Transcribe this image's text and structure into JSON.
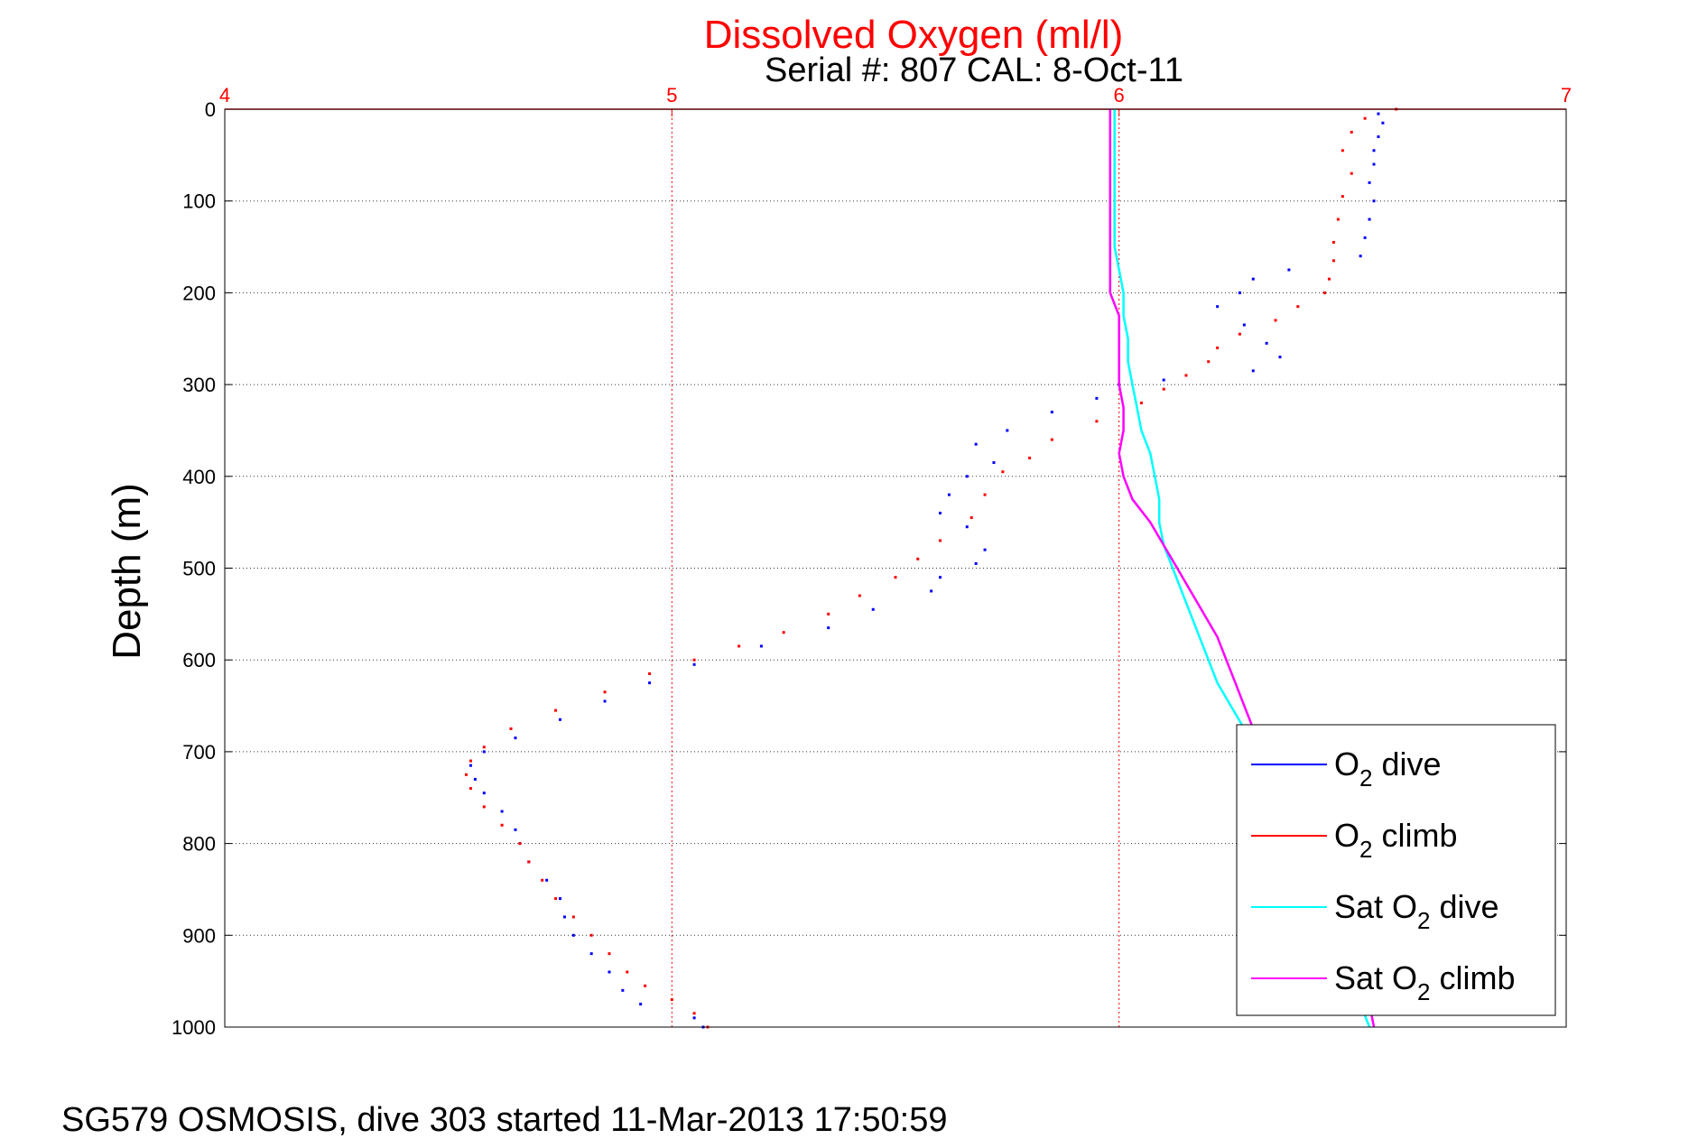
{
  "chart_data": {
    "type": "scatter",
    "title": "Dissolved Oxygen (ml/l)",
    "subtitle": "Serial #: 807  CAL: 8-Oct-11",
    "footer": "SG579 OSMOSIS, dive 303 started 11-Mar-2013 17:50:59",
    "xlabel": "",
    "ylabel": "Depth (m)",
    "xlim": [
      4,
      7
    ],
    "ylim": [
      0,
      1000
    ],
    "y_reversed": true,
    "x_axis_position": "top",
    "xticks": [
      "4",
      "5",
      "6",
      "7"
    ],
    "yticks": [
      "0",
      "100",
      "200",
      "300",
      "400",
      "500",
      "600",
      "700",
      "800",
      "900",
      "1000"
    ],
    "grid": true,
    "legend_position": "bottom-right",
    "colors": {
      "title": "#ff0000",
      "x_axis": "#ff0000",
      "o2_dive": "#0000ff",
      "o2_climb": "#ff0000",
      "sat_dive": "#00ffff",
      "sat_climb": "#ff00ff"
    },
    "legend": [
      {
        "sub_pre": "O",
        "sub": "2",
        "post": " dive"
      },
      {
        "sub_pre": "O",
        "sub": "2",
        "post": " climb"
      },
      {
        "sub_pre": "Sat O",
        "sub": "2",
        "post": " dive"
      },
      {
        "sub_pre": "Sat O",
        "sub": "2",
        "post": " climb"
      }
    ],
    "series": [
      {
        "name": "O2 dive",
        "style": "dots",
        "points": [
          [
            6.58,
            5
          ],
          [
            6.59,
            15
          ],
          [
            6.58,
            30
          ],
          [
            6.57,
            45
          ],
          [
            6.57,
            60
          ],
          [
            6.56,
            80
          ],
          [
            6.57,
            100
          ],
          [
            6.56,
            120
          ],
          [
            6.55,
            140
          ],
          [
            6.54,
            160
          ],
          [
            6.38,
            175
          ],
          [
            6.3,
            185
          ],
          [
            6.27,
            200
          ],
          [
            6.22,
            215
          ],
          [
            6.28,
            235
          ],
          [
            6.33,
            255
          ],
          [
            6.36,
            270
          ],
          [
            6.3,
            285
          ],
          [
            6.1,
            295
          ],
          [
            6.0,
            300
          ],
          [
            5.95,
            315
          ],
          [
            5.85,
            330
          ],
          [
            5.75,
            350
          ],
          [
            5.68,
            365
          ],
          [
            5.72,
            385
          ],
          [
            5.66,
            400
          ],
          [
            5.62,
            420
          ],
          [
            5.6,
            440
          ],
          [
            5.66,
            455
          ],
          [
            5.6,
            470
          ],
          [
            5.7,
            480
          ],
          [
            5.68,
            495
          ],
          [
            5.6,
            510
          ],
          [
            5.58,
            525
          ],
          [
            5.45,
            545
          ],
          [
            5.35,
            565
          ],
          [
            5.2,
            585
          ],
          [
            5.05,
            605
          ],
          [
            4.95,
            625
          ],
          [
            4.85,
            645
          ],
          [
            4.75,
            665
          ],
          [
            4.65,
            685
          ],
          [
            4.58,
            700
          ],
          [
            4.55,
            715
          ],
          [
            4.56,
            730
          ],
          [
            4.58,
            745
          ],
          [
            4.62,
            765
          ],
          [
            4.65,
            785
          ],
          [
            4.66,
            800
          ],
          [
            4.68,
            820
          ],
          [
            4.72,
            840
          ],
          [
            4.75,
            860
          ],
          [
            4.76,
            880
          ],
          [
            4.78,
            900
          ],
          [
            4.82,
            920
          ],
          [
            4.86,
            940
          ],
          [
            4.89,
            960
          ],
          [
            4.93,
            975
          ],
          [
            5.05,
            990
          ],
          [
            5.07,
            1000
          ]
        ]
      },
      {
        "name": "O2 climb",
        "style": "dots",
        "points": [
          [
            6.62,
            0
          ],
          [
            6.55,
            10
          ],
          [
            6.52,
            25
          ],
          [
            6.5,
            45
          ],
          [
            6.52,
            70
          ],
          [
            6.5,
            95
          ],
          [
            6.49,
            120
          ],
          [
            6.48,
            145
          ],
          [
            6.48,
            165
          ],
          [
            6.47,
            185
          ],
          [
            6.46,
            200
          ],
          [
            6.4,
            215
          ],
          [
            6.35,
            230
          ],
          [
            6.27,
            245
          ],
          [
            6.22,
            260
          ],
          [
            6.2,
            275
          ],
          [
            6.15,
            290
          ],
          [
            6.1,
            305
          ],
          [
            6.05,
            320
          ],
          [
            5.95,
            340
          ],
          [
            5.85,
            360
          ],
          [
            5.8,
            380
          ],
          [
            5.74,
            395
          ],
          [
            5.7,
            420
          ],
          [
            5.67,
            445
          ],
          [
            5.6,
            470
          ],
          [
            5.55,
            490
          ],
          [
            5.5,
            510
          ],
          [
            5.42,
            530
          ],
          [
            5.35,
            550
          ],
          [
            5.25,
            570
          ],
          [
            5.15,
            585
          ],
          [
            5.05,
            600
          ],
          [
            4.95,
            615
          ],
          [
            4.85,
            635
          ],
          [
            4.74,
            655
          ],
          [
            4.64,
            675
          ],
          [
            4.58,
            695
          ],
          [
            4.55,
            710
          ],
          [
            4.54,
            725
          ],
          [
            4.55,
            740
          ],
          [
            4.58,
            760
          ],
          [
            4.62,
            780
          ],
          [
            4.66,
            800
          ],
          [
            4.68,
            820
          ],
          [
            4.71,
            840
          ],
          [
            4.74,
            860
          ],
          [
            4.78,
            880
          ],
          [
            4.82,
            900
          ],
          [
            4.86,
            920
          ],
          [
            4.9,
            940
          ],
          [
            4.94,
            955
          ],
          [
            5.0,
            970
          ],
          [
            5.05,
            985
          ],
          [
            5.08,
            1000
          ]
        ]
      },
      {
        "name": "Sat O2 dive",
        "style": "line",
        "points": [
          [
            5.99,
            0
          ],
          [
            5.99,
            50
          ],
          [
            5.99,
            100
          ],
          [
            5.99,
            150
          ],
          [
            6.0,
            175
          ],
          [
            6.01,
            200
          ],
          [
            6.01,
            225
          ],
          [
            6.02,
            250
          ],
          [
            6.02,
            275
          ],
          [
            6.03,
            300
          ],
          [
            6.04,
            325
          ],
          [
            6.05,
            350
          ],
          [
            6.07,
            375
          ],
          [
            6.08,
            400
          ],
          [
            6.09,
            425
          ],
          [
            6.09,
            450
          ],
          [
            6.1,
            475
          ],
          [
            6.12,
            500
          ],
          [
            6.14,
            525
          ],
          [
            6.16,
            550
          ],
          [
            6.18,
            575
          ],
          [
            6.2,
            600
          ],
          [
            6.22,
            625
          ],
          [
            6.25,
            650
          ],
          [
            6.28,
            675
          ],
          [
            6.31,
            700
          ],
          [
            6.34,
            725
          ],
          [
            6.37,
            750
          ],
          [
            6.39,
            775
          ],
          [
            6.41,
            800
          ],
          [
            6.43,
            825
          ],
          [
            6.45,
            850
          ],
          [
            6.47,
            875
          ],
          [
            6.49,
            900
          ],
          [
            6.51,
            925
          ],
          [
            6.53,
            950
          ],
          [
            6.54,
            975
          ],
          [
            6.56,
            1000
          ]
        ]
      },
      {
        "name": "Sat O2 climb",
        "style": "line",
        "points": [
          [
            5.98,
            0
          ],
          [
            5.98,
            50
          ],
          [
            5.98,
            100
          ],
          [
            5.98,
            150
          ],
          [
            5.98,
            180
          ],
          [
            5.98,
            200
          ],
          [
            6.0,
            225
          ],
          [
            6.0,
            250
          ],
          [
            6.0,
            275
          ],
          [
            6.0,
            300
          ],
          [
            6.01,
            325
          ],
          [
            6.01,
            350
          ],
          [
            6.0,
            375
          ],
          [
            6.01,
            400
          ],
          [
            6.03,
            425
          ],
          [
            6.07,
            450
          ],
          [
            6.1,
            475
          ],
          [
            6.13,
            500
          ],
          [
            6.16,
            525
          ],
          [
            6.19,
            550
          ],
          [
            6.22,
            575
          ],
          [
            6.24,
            600
          ],
          [
            6.26,
            625
          ],
          [
            6.28,
            650
          ],
          [
            6.3,
            675
          ],
          [
            6.33,
            700
          ],
          [
            6.36,
            725
          ],
          [
            6.39,
            750
          ],
          [
            6.41,
            775
          ],
          [
            6.43,
            800
          ],
          [
            6.45,
            825
          ],
          [
            6.47,
            850
          ],
          [
            6.49,
            875
          ],
          [
            6.51,
            900
          ],
          [
            6.53,
            925
          ],
          [
            6.55,
            950
          ],
          [
            6.56,
            975
          ],
          [
            6.57,
            1000
          ]
        ]
      }
    ]
  }
}
